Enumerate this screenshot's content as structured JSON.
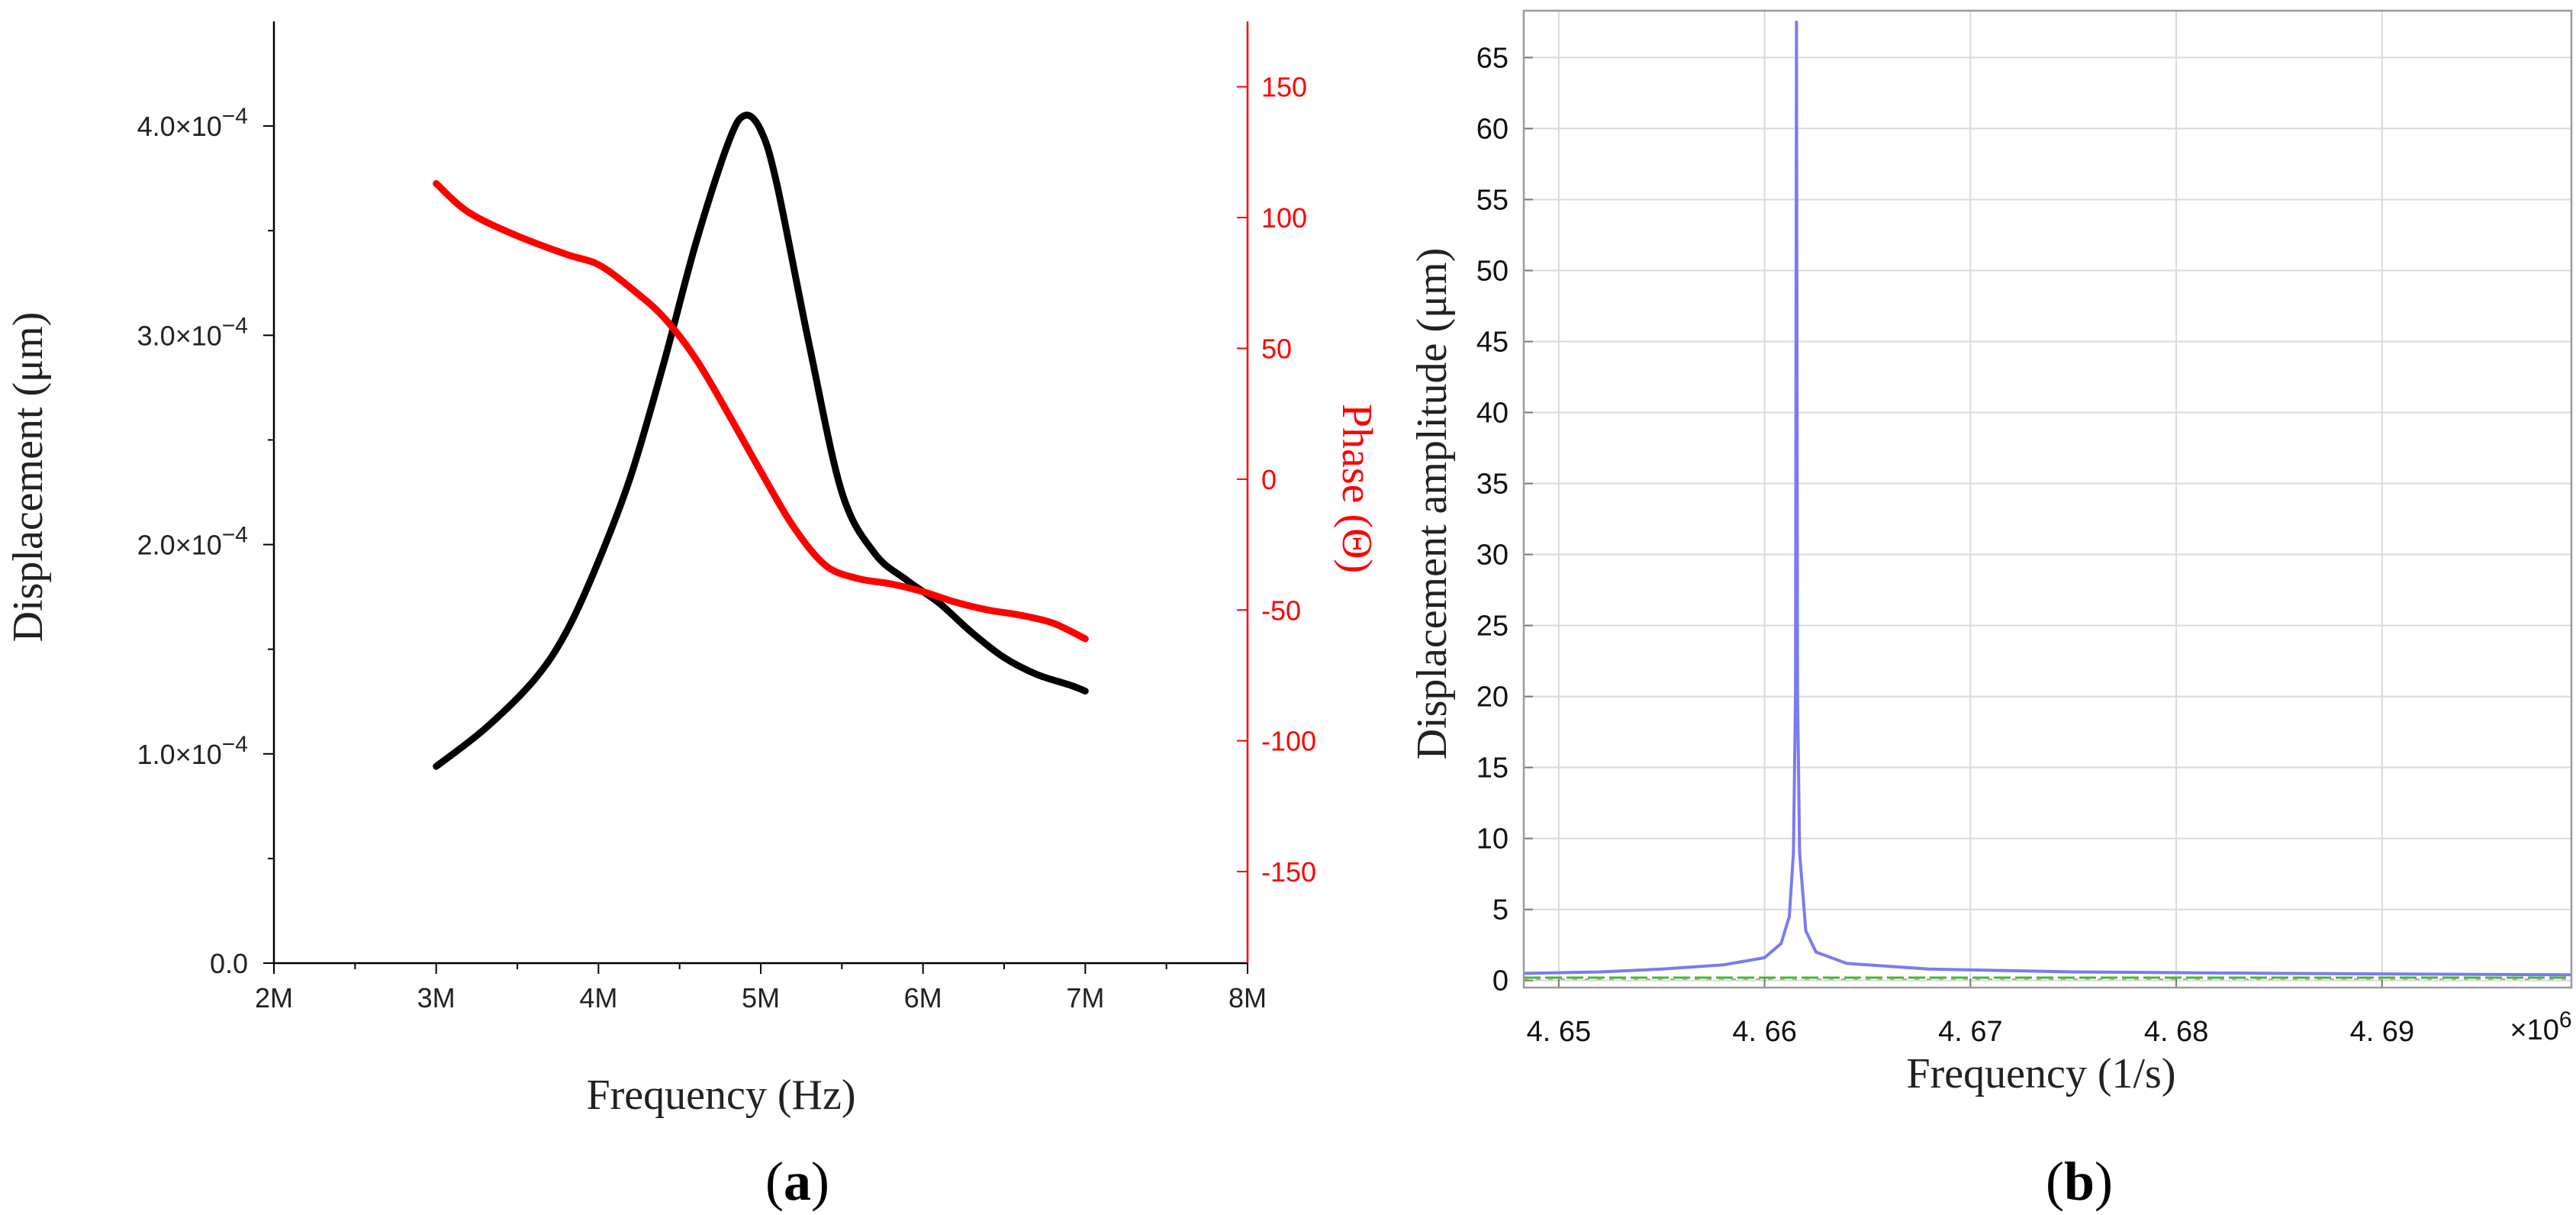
{
  "panel_a_label": {
    "open": "(",
    "letter": "a",
    "close": ")"
  },
  "panel_b_label": {
    "open": "(",
    "letter": "b",
    "close": ")"
  },
  "colors": {
    "displacement": "#000000",
    "phase": "#ff0000",
    "amplitude": "#7b7bef",
    "grid": "#d9d9d9",
    "axis_b": "#9a9a9a"
  },
  "chart_data": [
    {
      "type": "line",
      "panel": "a",
      "title": "",
      "xlabel": "Frequency  (Hz)",
      "ylabel": "Displacement  (μm)",
      "y2label": "Phase  (Θ)",
      "xlim": [
        2,
        8
      ],
      "ylim": [
        0,
        0.00045
      ],
      "y2lim": [
        -185,
        175
      ],
      "x_ticks": [
        {
          "value": 2,
          "label": "2M"
        },
        {
          "value": 3,
          "label": "3M"
        },
        {
          "value": 4,
          "label": "4M"
        },
        {
          "value": 5,
          "label": "5M"
        },
        {
          "value": 6,
          "label": "6M"
        },
        {
          "value": 7,
          "label": "7M"
        },
        {
          "value": 8,
          "label": "8M"
        }
      ],
      "y_ticks": [
        {
          "value": 0.0,
          "label": "0.0"
        },
        {
          "value": 0.0001,
          "mant": "1.0×10",
          "exp": "−4"
        },
        {
          "value": 0.0002,
          "mant": "2.0×10",
          "exp": "−4"
        },
        {
          "value": 0.0003,
          "mant": "3.0×10",
          "exp": "−4"
        },
        {
          "value": 0.0004,
          "mant": "4.0×10",
          "exp": "−4"
        }
      ],
      "y2_ticks": [
        {
          "value": 150,
          "label": "150"
        },
        {
          "value": 100,
          "label": "100"
        },
        {
          "value": 50,
          "label": "50"
        },
        {
          "value": 0,
          "label": "0"
        },
        {
          "value": -50,
          "label": "-50"
        },
        {
          "value": -100,
          "label": "-100"
        },
        {
          "value": -150,
          "label": "-150"
        }
      ],
      "series": [
        {
          "name": "Displacement",
          "axis": "left",
          "color": "#000000",
          "x": [
            3.0,
            3.3,
            3.6,
            3.8,
            4.0,
            4.2,
            4.4,
            4.6,
            4.8,
            4.9,
            5.0,
            5.1,
            5.3,
            5.5,
            5.7,
            5.9,
            6.1,
            6.3,
            6.5,
            6.7,
            6.9,
            7.0
          ],
          "y": [
            9.4e-05,
            0.000112,
            0.000135,
            0.000158,
            0.000192,
            0.000233,
            0.000286,
            0.000344,
            0.000392,
            0.000405,
            0.000398,
            0.000372,
            0.000295,
            0.000225,
            0.000196,
            0.000183,
            0.000172,
            0.000158,
            0.000146,
            0.000138,
            0.000133,
            0.00013
          ]
        },
        {
          "name": "Phase",
          "axis": "right",
          "color": "#ff0000",
          "x": [
            3.0,
            3.2,
            3.5,
            3.8,
            4.0,
            4.2,
            4.4,
            4.6,
            4.8,
            5.0,
            5.2,
            5.4,
            5.6,
            5.8,
            6.0,
            6.2,
            6.4,
            6.6,
            6.8,
            7.0
          ],
          "y": [
            113,
            102,
            93,
            86,
            82,
            73,
            62,
            46,
            25,
            3,
            -18,
            -33,
            -38,
            -40,
            -43,
            -47,
            -50,
            -52,
            -55,
            -61
          ]
        }
      ]
    },
    {
      "type": "line",
      "panel": "b",
      "title": "",
      "xlabel": "Frequency  (1/s)",
      "ylabel": "Displacement amplitude  (μm)",
      "x_multiplier": {
        "base": "×10",
        "exp": "6"
      },
      "xlim": [
        4.6483,
        4.6992
      ],
      "ylim": [
        -0.5,
        68.3
      ],
      "x_ticks": [
        {
          "value": 4.65,
          "label": "4. 65"
        },
        {
          "value": 4.66,
          "label": "4. 66"
        },
        {
          "value": 4.67,
          "label": "4. 67"
        },
        {
          "value": 4.68,
          "label": "4. 68"
        },
        {
          "value": 4.69,
          "label": "4. 69"
        }
      ],
      "y_ticks": [
        {
          "value": 0,
          "label": "0"
        },
        {
          "value": 5,
          "label": "5"
        },
        {
          "value": 10,
          "label": "10"
        },
        {
          "value": 15,
          "label": "15"
        },
        {
          "value": 20,
          "label": "20"
        },
        {
          "value": 25,
          "label": "25"
        },
        {
          "value": 30,
          "label": "30"
        },
        {
          "value": 35,
          "label": "35"
        },
        {
          "value": 40,
          "label": "40"
        },
        {
          "value": 45,
          "label": "45"
        },
        {
          "value": 50,
          "label": "50"
        },
        {
          "value": 55,
          "label": "55"
        },
        {
          "value": 60,
          "label": "60"
        },
        {
          "value": 65,
          "label": "65"
        }
      ],
      "grid": true,
      "series": [
        {
          "name": "Displacement amplitude",
          "color": "#7b7bef",
          "x": [
            4.6483,
            4.652,
            4.655,
            4.658,
            4.66,
            4.6608,
            4.6612,
            4.6614,
            4.6615,
            4.66155,
            4.6616,
            4.6617,
            4.662,
            4.6625,
            4.664,
            4.668,
            4.675,
            4.685,
            4.6992
          ],
          "y": [
            0.5,
            0.6,
            0.8,
            1.1,
            1.6,
            2.6,
            4.5,
            9.0,
            20.0,
            67.5,
            20.0,
            9.0,
            3.5,
            2.0,
            1.2,
            0.8,
            0.6,
            0.5,
            0.4
          ]
        }
      ]
    }
  ]
}
